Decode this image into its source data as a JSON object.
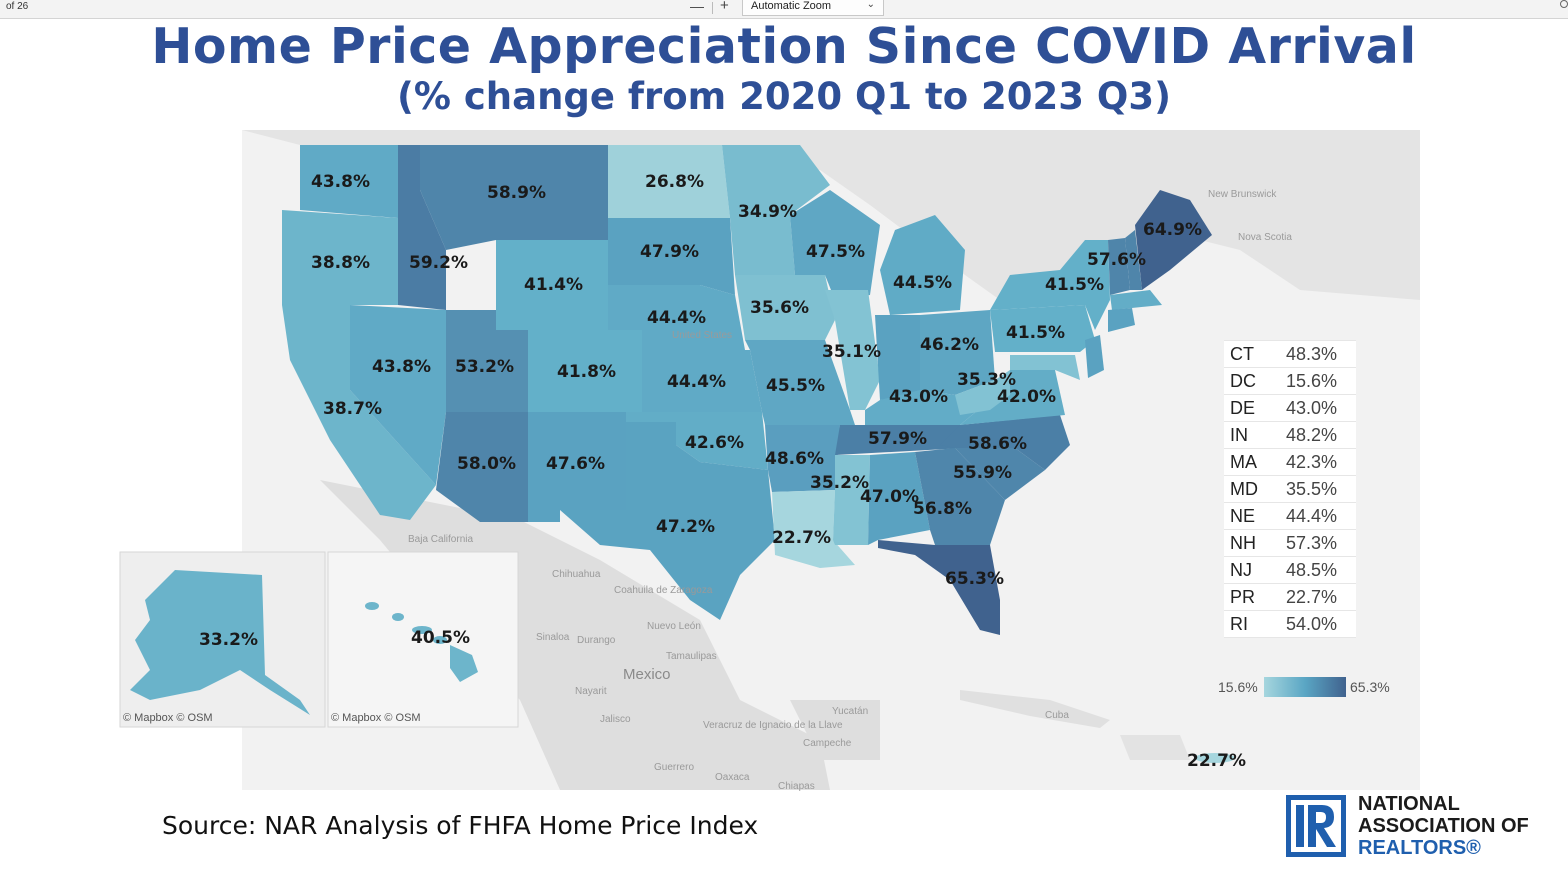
{
  "viewer": {
    "page_count": "of 26",
    "zoom_out_label": "—",
    "zoom_in_label": "+",
    "zoom_value": "Automatic Zoom"
  },
  "title": "Home Price Appreciation Since COVID Arrival",
  "subtitle": "(% change from 2020 Q1 to 2023 Q3)",
  "map": {
    "states": [
      {
        "id": "WA",
        "value": "43.8%"
      },
      {
        "id": "OR",
        "value": "38.8%"
      },
      {
        "id": "CA",
        "value": "38.7%"
      },
      {
        "id": "ID",
        "value": "59.2%"
      },
      {
        "id": "NV",
        "value": "43.8%"
      },
      {
        "id": "MT",
        "value": "58.9%"
      },
      {
        "id": "WY",
        "value": "41.4%"
      },
      {
        "id": "UT",
        "value": "53.2%"
      },
      {
        "id": "AZ",
        "value": "58.0%"
      },
      {
        "id": "CO",
        "value": "41.8%"
      },
      {
        "id": "NM",
        "value": "47.6%"
      },
      {
        "id": "ND",
        "value": "26.8%"
      },
      {
        "id": "SD",
        "value": "47.9%"
      },
      {
        "id": "NE",
        "value": "44.4%"
      },
      {
        "id": "KS",
        "value": "44.4%"
      },
      {
        "id": "OK",
        "value": "42.6%"
      },
      {
        "id": "TX",
        "value": "47.2%"
      },
      {
        "id": "MN",
        "value": "34.9%"
      },
      {
        "id": "IA",
        "value": "35.6%"
      },
      {
        "id": "MO",
        "value": "45.5%"
      },
      {
        "id": "AR",
        "value": "48.6%"
      },
      {
        "id": "LA",
        "value": "22.7%"
      },
      {
        "id": "WI",
        "value": "47.5%"
      },
      {
        "id": "IL",
        "value": "35.1%"
      },
      {
        "id": "MI",
        "value": "44.5%"
      },
      {
        "id": "OH",
        "value": "46.2%"
      },
      {
        "id": "KY",
        "value": "43.0%"
      },
      {
        "id": "TN",
        "value": "57.9%"
      },
      {
        "id": "MS",
        "value": "35.2%"
      },
      {
        "id": "AL",
        "value": "47.0%"
      },
      {
        "id": "GA",
        "value": "56.8%"
      },
      {
        "id": "FL",
        "value": "65.3%"
      },
      {
        "id": "SC",
        "value": "55.9%"
      },
      {
        "id": "NC",
        "value": "58.6%"
      },
      {
        "id": "VA",
        "value": "42.0%"
      },
      {
        "id": "WV",
        "value": "35.3%"
      },
      {
        "id": "PA",
        "value": "41.5%"
      },
      {
        "id": "NY",
        "value": "41.5%"
      },
      {
        "id": "VT",
        "value": "57.6%"
      },
      {
        "id": "ME",
        "value": "64.9%"
      },
      {
        "id": "AK",
        "value": "33.2%"
      },
      {
        "id": "HI",
        "value": "40.5%"
      },
      {
        "id": "PR",
        "value": "22.7%"
      }
    ],
    "geo_labels": {
      "new_brunswick": "New Brunswick",
      "nova_scotia": "Nova Scotia",
      "united_states": "United States",
      "baja": "Baja California",
      "chihuahua": "Chihuahua",
      "coahuila": "Coahuila de Zaragoza",
      "nuevo_leon": "Nuevo León",
      "sinaloa": "Sinaloa",
      "durango": "Durango",
      "tamaulipas": "Tamaulipas",
      "mexico": "Mexico",
      "nayarit": "Nayarit",
      "jalisco": "Jalisco",
      "veracruz": "Veracruz de Ignacio de la Llave",
      "guerrero": "Guerrero",
      "oaxaca": "Oaxaca",
      "chiapas": "Chiapas",
      "yucatan": "Yucatán",
      "campeche": "Campeche",
      "cuba": "Cuba"
    },
    "attribution_ak": "© Mapbox © OSM",
    "attribution_hi": "© Mapbox © OSM",
    "colors": {
      "low": "#a6d6de",
      "mid": "#5aa6c4",
      "high": "#40628e",
      "land": "#e6e6e6"
    }
  },
  "small_states": [
    {
      "code": "CT",
      "value": "48.3%"
    },
    {
      "code": "DC",
      "value": "15.6%"
    },
    {
      "code": "DE",
      "value": "43.0%"
    },
    {
      "code": "IN",
      "value": "48.2%"
    },
    {
      "code": "MA",
      "value": "42.3%"
    },
    {
      "code": "MD",
      "value": "35.5%"
    },
    {
      "code": "NE",
      "value": "44.4%"
    },
    {
      "code": "NH",
      "value": "57.3%"
    },
    {
      "code": "NJ",
      "value": "48.5%"
    },
    {
      "code": "PR",
      "value": "22.7%"
    },
    {
      "code": "RI",
      "value": "54.0%"
    }
  ],
  "scale": {
    "min": "15.6%",
    "max": "65.3%"
  },
  "source": "Source: NAR Analysis of FHFA Home Price Index",
  "logo": {
    "line1": "NATIONAL",
    "line2": "ASSOCIATION OF",
    "line3": "REALTORS®",
    "color": "#1f5fae"
  }
}
